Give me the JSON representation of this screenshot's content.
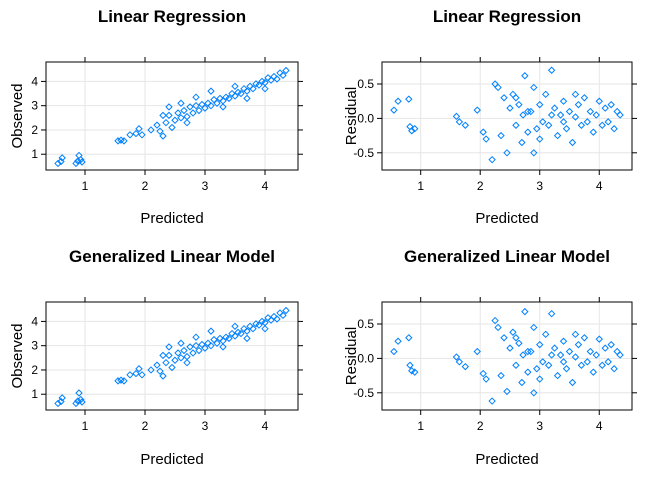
{
  "colors": {
    "points": "#0080ff",
    "grid": "#e6e6e6",
    "frame": "#000000"
  },
  "chart_data": [
    {
      "type": "scatter",
      "title": "Linear Regression",
      "xlabel": "Predicted",
      "ylabel": "Observed",
      "xlim": [
        0.35,
        4.55
      ],
      "ylim": [
        0.35,
        4.8
      ],
      "xticks": [
        1,
        2,
        3,
        4
      ],
      "yticks": [
        1,
        2,
        3,
        4
      ],
      "grid": true,
      "points": [
        [
          0.55,
          0.62
        ],
        [
          0.6,
          0.7
        ],
        [
          0.62,
          0.85
        ],
        [
          0.85,
          0.62
        ],
        [
          0.88,
          0.72
        ],
        [
          0.9,
          0.95
        ],
        [
          0.93,
          0.78
        ],
        [
          0.95,
          0.68
        ],
        [
          1.55,
          1.55
        ],
        [
          1.6,
          1.58
        ],
        [
          1.65,
          1.55
        ],
        [
          1.75,
          1.8
        ],
        [
          1.85,
          1.85
        ],
        [
          1.9,
          2.05
        ],
        [
          1.95,
          1.8
        ],
        [
          2.1,
          2.0
        ],
        [
          2.2,
          2.2
        ],
        [
          2.25,
          1.95
        ],
        [
          2.3,
          2.6
        ],
        [
          2.35,
          2.3
        ],
        [
          2.4,
          2.6
        ],
        [
          2.45,
          2.1
        ],
        [
          2.5,
          2.4
        ],
        [
          2.55,
          2.7
        ],
        [
          2.6,
          2.5
        ],
        [
          2.65,
          2.8
        ],
        [
          2.7,
          2.55
        ],
        [
          2.75,
          2.95
        ],
        [
          2.8,
          2.7
        ],
        [
          2.85,
          3.0
        ],
        [
          2.9,
          2.8
        ],
        [
          2.95,
          3.05
        ],
        [
          3.0,
          2.9
        ],
        [
          3.05,
          3.1
        ],
        [
          3.1,
          3.0
        ],
        [
          3.15,
          3.25
        ],
        [
          3.2,
          3.1
        ],
        [
          3.25,
          3.3
        ],
        [
          3.3,
          3.2
        ],
        [
          3.35,
          3.35
        ],
        [
          3.4,
          3.3
        ],
        [
          3.45,
          3.5
        ],
        [
          3.5,
          3.4
        ],
        [
          3.55,
          3.55
        ],
        [
          3.6,
          3.5
        ],
        [
          3.65,
          3.7
        ],
        [
          3.7,
          3.6
        ],
        [
          3.75,
          3.8
        ],
        [
          3.8,
          3.7
        ],
        [
          3.85,
          3.9
        ],
        [
          3.9,
          3.85
        ],
        [
          3.95,
          4.0
        ],
        [
          4.0,
          3.95
        ],
        [
          4.05,
          4.15
        ],
        [
          4.1,
          4.05
        ],
        [
          4.15,
          4.2
        ],
        [
          4.2,
          4.1
        ],
        [
          4.25,
          4.35
        ],
        [
          4.3,
          4.25
        ],
        [
          4.35,
          4.45
        ],
        [
          2.4,
          2.95
        ],
        [
          2.7,
          2.3
        ],
        [
          3.1,
          3.6
        ],
        [
          3.3,
          2.95
        ],
        [
          2.6,
          3.1
        ],
        [
          3.5,
          3.8
        ],
        [
          3.7,
          3.3
        ],
        [
          2.3,
          1.75
        ],
        [
          4.0,
          3.7
        ],
        [
          2.85,
          3.35
        ]
      ]
    },
    {
      "type": "scatter",
      "title": "Linear Regression",
      "xlabel": "Predicted",
      "ylabel": "Residual",
      "xlim": [
        0.35,
        4.55
      ],
      "ylim": [
        -0.75,
        0.82
      ],
      "xticks": [
        1,
        2,
        3,
        4
      ],
      "yticks": [
        "-0.5",
        "0.0",
        "0.5"
      ],
      "grid": true,
      "points": [
        [
          0.55,
          0.12
        ],
        [
          0.62,
          0.25
        ],
        [
          0.8,
          0.28
        ],
        [
          0.82,
          -0.12
        ],
        [
          0.85,
          -0.18
        ],
        [
          0.9,
          -0.15
        ],
        [
          1.6,
          0.03
        ],
        [
          1.65,
          -0.05
        ],
        [
          1.75,
          -0.1
        ],
        [
          1.95,
          0.12
        ],
        [
          2.05,
          -0.2
        ],
        [
          2.1,
          -0.3
        ],
        [
          2.2,
          -0.6
        ],
        [
          2.25,
          0.5
        ],
        [
          2.3,
          0.45
        ],
        [
          2.35,
          -0.25
        ],
        [
          2.4,
          0.3
        ],
        [
          2.45,
          -0.5
        ],
        [
          2.5,
          0.15
        ],
        [
          2.55,
          0.35
        ],
        [
          2.6,
          -0.1
        ],
        [
          2.65,
          0.2
        ],
        [
          2.7,
          -0.35
        ],
        [
          2.72,
          0.05
        ],
        [
          2.75,
          0.62
        ],
        [
          2.8,
          -0.2
        ],
        [
          2.85,
          0.1
        ],
        [
          2.9,
          0.45
        ],
        [
          2.95,
          -0.15
        ],
        [
          3.0,
          0.2
        ],
        [
          3.05,
          -0.05
        ],
        [
          3.1,
          0.35
        ],
        [
          3.15,
          -0.1
        ],
        [
          3.2,
          0.7
        ],
        [
          3.25,
          0.15
        ],
        [
          3.3,
          -0.25
        ],
        [
          3.35,
          0.05
        ],
        [
          3.4,
          0.25
        ],
        [
          3.45,
          -0.15
        ],
        [
          3.5,
          0.1
        ],
        [
          3.55,
          -0.35
        ],
        [
          3.6,
          0.02
        ],
        [
          3.65,
          0.2
        ],
        [
          3.7,
          -0.1
        ],
        [
          3.75,
          0.3
        ],
        [
          3.8,
          -0.05
        ],
        [
          3.85,
          0.1
        ],
        [
          3.9,
          -0.2
        ],
        [
          3.95,
          0.05
        ],
        [
          4.0,
          0.25
        ],
        [
          4.05,
          -0.1
        ],
        [
          4.1,
          0.15
        ],
        [
          4.15,
          -0.05
        ],
        [
          4.2,
          0.2
        ],
        [
          4.25,
          -0.15
        ],
        [
          4.3,
          0.1
        ],
        [
          4.35,
          0.05
        ],
        [
          2.6,
          0.3
        ],
        [
          2.8,
          0.1
        ],
        [
          3.0,
          -0.3
        ],
        [
          3.2,
          0.05
        ],
        [
          3.4,
          -0.05
        ],
        [
          2.9,
          -0.5
        ],
        [
          3.6,
          0.35
        ]
      ]
    },
    {
      "type": "scatter",
      "title": "Generalized Linear Model",
      "xlabel": "Predicted",
      "ylabel": "Observed",
      "xlim": [
        0.35,
        4.55
      ],
      "ylim": [
        0.35,
        4.8
      ],
      "xticks": [
        1,
        2,
        3,
        4
      ],
      "yticks": [
        1,
        2,
        3,
        4
      ],
      "grid": true,
      "points": [
        [
          0.55,
          0.62
        ],
        [
          0.6,
          0.7
        ],
        [
          0.62,
          0.85
        ],
        [
          0.85,
          0.62
        ],
        [
          0.88,
          0.72
        ],
        [
          0.9,
          1.05
        ],
        [
          0.93,
          0.78
        ],
        [
          0.95,
          0.68
        ],
        [
          1.55,
          1.55
        ],
        [
          1.6,
          1.58
        ],
        [
          1.65,
          1.55
        ],
        [
          1.75,
          1.8
        ],
        [
          1.85,
          1.85
        ],
        [
          1.9,
          2.05
        ],
        [
          1.95,
          1.8
        ],
        [
          2.1,
          2.0
        ],
        [
          2.2,
          2.2
        ],
        [
          2.25,
          1.95
        ],
        [
          2.3,
          2.6
        ],
        [
          2.35,
          2.3
        ],
        [
          2.4,
          2.6
        ],
        [
          2.45,
          2.1
        ],
        [
          2.5,
          2.4
        ],
        [
          2.55,
          2.7
        ],
        [
          2.6,
          2.5
        ],
        [
          2.65,
          2.8
        ],
        [
          2.7,
          2.55
        ],
        [
          2.75,
          2.95
        ],
        [
          2.8,
          2.7
        ],
        [
          2.85,
          3.0
        ],
        [
          2.9,
          2.8
        ],
        [
          2.95,
          3.05
        ],
        [
          3.0,
          2.9
        ],
        [
          3.05,
          3.1
        ],
        [
          3.1,
          3.0
        ],
        [
          3.15,
          3.25
        ],
        [
          3.2,
          3.1
        ],
        [
          3.25,
          3.3
        ],
        [
          3.3,
          3.2
        ],
        [
          3.35,
          3.35
        ],
        [
          3.4,
          3.3
        ],
        [
          3.45,
          3.5
        ],
        [
          3.5,
          3.4
        ],
        [
          3.55,
          3.55
        ],
        [
          3.6,
          3.5
        ],
        [
          3.65,
          3.7
        ],
        [
          3.7,
          3.6
        ],
        [
          3.75,
          3.8
        ],
        [
          3.8,
          3.7
        ],
        [
          3.85,
          3.9
        ],
        [
          3.9,
          3.85
        ],
        [
          3.95,
          4.0
        ],
        [
          4.0,
          3.95
        ],
        [
          4.05,
          4.15
        ],
        [
          4.1,
          4.05
        ],
        [
          4.15,
          4.2
        ],
        [
          4.2,
          4.1
        ],
        [
          4.25,
          4.35
        ],
        [
          4.3,
          4.25
        ],
        [
          4.35,
          4.45
        ],
        [
          2.4,
          2.95
        ],
        [
          2.7,
          2.3
        ],
        [
          3.1,
          3.6
        ],
        [
          3.3,
          2.95
        ],
        [
          2.6,
          3.1
        ],
        [
          3.5,
          3.8
        ],
        [
          3.7,
          3.3
        ],
        [
          2.3,
          1.75
        ],
        [
          4.0,
          3.7
        ],
        [
          2.85,
          3.35
        ]
      ]
    },
    {
      "type": "scatter",
      "title": "Generalized Linear Model",
      "xlabel": "Predicted",
      "ylabel": "Residual",
      "xlim": [
        0.35,
        4.55
      ],
      "ylim": [
        -0.75,
        0.82
      ],
      "xticks": [
        1,
        2,
        3,
        4
      ],
      "yticks": [
        "-0.5",
        "0.0",
        "0.5"
      ],
      "grid": true,
      "points": [
        [
          0.55,
          0.1
        ],
        [
          0.62,
          0.25
        ],
        [
          0.8,
          0.3
        ],
        [
          0.82,
          -0.1
        ],
        [
          0.85,
          -0.18
        ],
        [
          0.9,
          -0.2
        ],
        [
          1.6,
          0.02
        ],
        [
          1.65,
          -0.05
        ],
        [
          1.75,
          -0.12
        ],
        [
          1.95,
          0.1
        ],
        [
          2.05,
          -0.22
        ],
        [
          2.1,
          -0.3
        ],
        [
          2.2,
          -0.62
        ],
        [
          2.25,
          0.55
        ],
        [
          2.3,
          0.45
        ],
        [
          2.35,
          -0.25
        ],
        [
          2.4,
          0.3
        ],
        [
          2.45,
          -0.48
        ],
        [
          2.5,
          0.15
        ],
        [
          2.55,
          0.38
        ],
        [
          2.6,
          -0.1
        ],
        [
          2.65,
          0.22
        ],
        [
          2.7,
          -0.35
        ],
        [
          2.72,
          0.05
        ],
        [
          2.75,
          0.68
        ],
        [
          2.8,
          -0.2
        ],
        [
          2.85,
          0.1
        ],
        [
          2.9,
          0.45
        ],
        [
          2.95,
          -0.15
        ],
        [
          3.0,
          0.2
        ],
        [
          3.05,
          -0.05
        ],
        [
          3.1,
          0.35
        ],
        [
          3.15,
          -0.1
        ],
        [
          3.2,
          0.65
        ],
        [
          3.25,
          0.15
        ],
        [
          3.3,
          -0.25
        ],
        [
          3.35,
          0.05
        ],
        [
          3.4,
          0.25
        ],
        [
          3.45,
          -0.15
        ],
        [
          3.5,
          0.1
        ],
        [
          3.55,
          -0.35
        ],
        [
          3.6,
          0.02
        ],
        [
          3.65,
          0.2
        ],
        [
          3.7,
          -0.1
        ],
        [
          3.75,
          0.3
        ],
        [
          3.8,
          -0.05
        ],
        [
          3.85,
          0.1
        ],
        [
          3.9,
          -0.2
        ],
        [
          3.95,
          0.05
        ],
        [
          4.0,
          0.28
        ],
        [
          4.05,
          -0.1
        ],
        [
          4.1,
          0.15
        ],
        [
          4.15,
          -0.05
        ],
        [
          4.2,
          0.2
        ],
        [
          4.25,
          -0.15
        ],
        [
          4.3,
          0.1
        ],
        [
          4.35,
          0.05
        ],
        [
          2.6,
          0.3
        ],
        [
          2.8,
          0.1
        ],
        [
          3.0,
          -0.3
        ],
        [
          3.2,
          0.05
        ],
        [
          3.4,
          -0.05
        ],
        [
          2.9,
          -0.5
        ],
        [
          3.6,
          0.35
        ]
      ]
    }
  ]
}
